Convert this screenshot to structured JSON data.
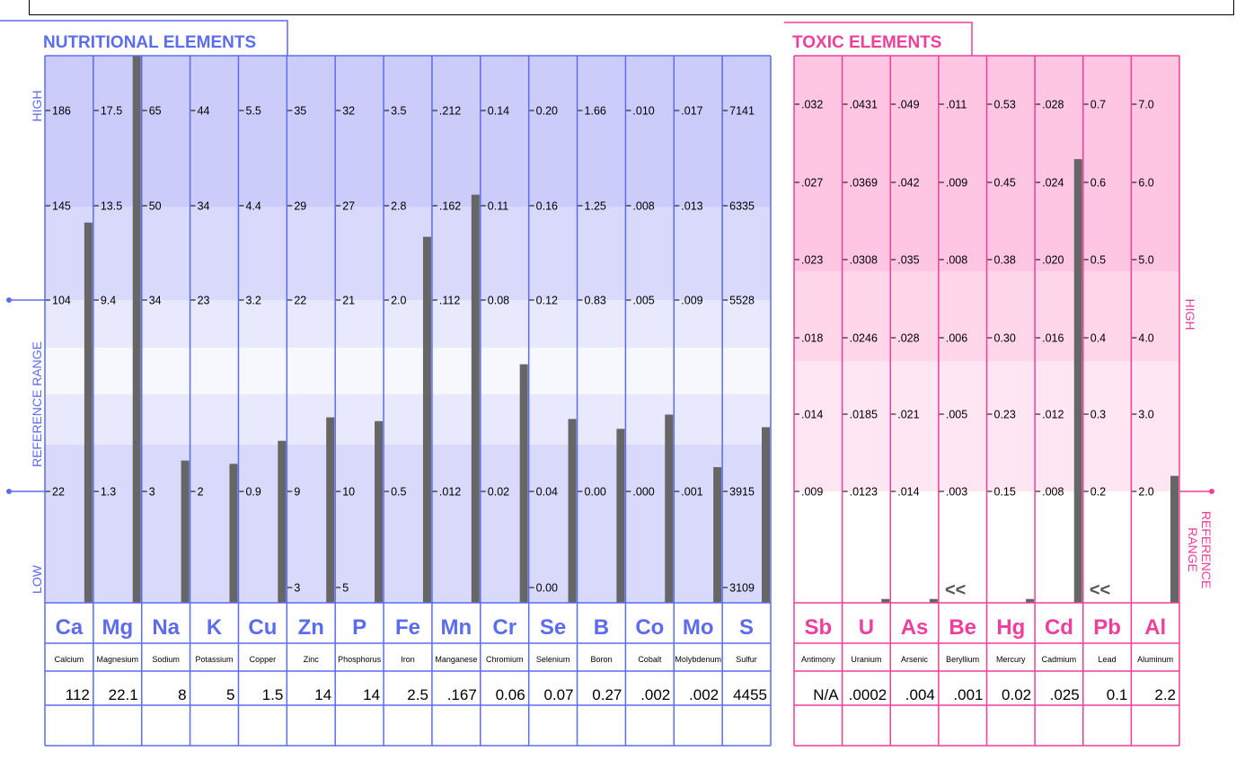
{
  "chart_data": [
    {
      "type": "bar",
      "title": "NUTRITIONAL ELEMENTS",
      "axis_labels": {
        "high": "HIGH",
        "reference_range": "REFERENCE   RANGE",
        "low": "LOW"
      },
      "accent": "#5b6cf0",
      "bar_color": "#666666",
      "elements": [
        {
          "symbol": "Ca",
          "name": "Calcium",
          "ticks": [
            "186",
            "145",
            "104",
            "22"
          ],
          "extra_ticks": [],
          "result": "112",
          "bar_level": 0.695
        },
        {
          "symbol": "Mg",
          "name": "Magnesium",
          "ticks": [
            "17.5",
            "13.5",
            "9.4",
            "1.3"
          ],
          "extra_ticks": [],
          "result": "22.1",
          "bar_level": 1.0
        },
        {
          "symbol": "Na",
          "name": "Sodium",
          "ticks": [
            "65",
            "50",
            "34",
            "3"
          ],
          "extra_ticks": [],
          "result": "8",
          "bar_level": 0.26
        },
        {
          "symbol": "K",
          "name": "Potassium",
          "ticks": [
            "44",
            "34",
            "23",
            "2"
          ],
          "extra_ticks": [],
          "result": "5",
          "bar_level": 0.254
        },
        {
          "symbol": "Cu",
          "name": "Copper",
          "ticks": [
            "5.5",
            "4.4",
            "3.2",
            "0.9"
          ],
          "extra_ticks": [],
          "result": "1.5",
          "bar_level": 0.296
        },
        {
          "symbol": "Zn",
          "name": "Zinc",
          "ticks": [
            "35",
            "29",
            "22",
            "9"
          ],
          "extra_ticks": [
            "3"
          ],
          "result": "14",
          "bar_level": 0.339
        },
        {
          "symbol": "P",
          "name": "Phosphorus",
          "ticks": [
            "32",
            "27",
            "21",
            "10"
          ],
          "extra_ticks": [
            "5"
          ],
          "result": "14",
          "bar_level": 0.332
        },
        {
          "symbol": "Fe",
          "name": "Iron",
          "ticks": [
            "3.5",
            "2.8",
            "2.0",
            "0.5"
          ],
          "extra_ticks": [],
          "result": "2.5",
          "bar_level": 0.669
        },
        {
          "symbol": "Mn",
          "name": "Manganese",
          "ticks": [
            ".212",
            ".162",
            ".112",
            ".012"
          ],
          "extra_ticks": [],
          "result": ".167",
          "bar_level": 0.746
        },
        {
          "symbol": "Cr",
          "name": "Chromium",
          "ticks": [
            "0.14",
            "0.11",
            "0.08",
            "0.02"
          ],
          "extra_ticks": [],
          "result": "0.06",
          "bar_level": 0.436
        },
        {
          "symbol": "Se",
          "name": "Selenium",
          "ticks": [
            "0.20",
            "0.16",
            "0.12",
            "0.04"
          ],
          "extra_ticks": [
            "0.00"
          ],
          "result": "0.07",
          "bar_level": 0.336
        },
        {
          "symbol": "B",
          "name": "Boron",
          "ticks": [
            "1.66",
            "1.25",
            "0.83",
            "0.00"
          ],
          "extra_ticks": [],
          "result": "0.27",
          "bar_level": 0.318
        },
        {
          "symbol": "Co",
          "name": "Cobalt",
          "ticks": [
            ".010",
            ".008",
            ".005",
            ".000"
          ],
          "extra_ticks": [],
          "result": ".002",
          "bar_level": 0.344
        },
        {
          "symbol": "Mo",
          "name": "Molybdenum",
          "ticks": [
            ".017",
            ".013",
            ".009",
            ".001"
          ],
          "extra_ticks": [],
          "result": ".002",
          "bar_level": 0.248
        },
        {
          "symbol": "S",
          "name": "Sulfur",
          "ticks": [
            "7141",
            "6335",
            "5528",
            "3915"
          ],
          "extra_ticks": [
            "3109"
          ],
          "result": "4455",
          "bar_level": 0.321
        }
      ]
    },
    {
      "type": "bar",
      "title": "TOXIC ELEMENTS",
      "axis_labels": {
        "high": "HIGH",
        "reference_range": "REFERENCE\nRANGE"
      },
      "accent": "#ef3f9a",
      "bar_color": "#666666",
      "elements": [
        {
          "symbol": "Sb",
          "name": "Antimony",
          "ticks": [
            ".032",
            ".027",
            ".023",
            ".018",
            ".014",
            ".009"
          ],
          "below_marker": "",
          "result": "N/A",
          "bar_level": 0.0
        },
        {
          "symbol": "U",
          "name": "Uranium",
          "ticks": [
            ".0431",
            ".0369",
            ".0308",
            ".0246",
            ".0185",
            ".0123"
          ],
          "below_marker": "",
          "result": ".0002",
          "bar_level": 0.007
        },
        {
          "symbol": "As",
          "name": "Arsenic",
          "ticks": [
            ".049",
            ".042",
            ".035",
            ".028",
            ".021",
            ".014"
          ],
          "below_marker": "",
          "result": ".004",
          "bar_level": 0.007
        },
        {
          "symbol": "Be",
          "name": "Beryllium",
          "ticks": [
            ".011",
            ".009",
            ".008",
            ".006",
            ".005",
            ".003"
          ],
          "below_marker": "<<",
          "result": ".001",
          "bar_level": 0.0
        },
        {
          "symbol": "Hg",
          "name": "Mercury",
          "ticks": [
            "0.53",
            "0.45",
            "0.38",
            "0.30",
            "0.23",
            "0.15"
          ],
          "below_marker": "",
          "result": "0.02",
          "bar_level": 0.007
        },
        {
          "symbol": "Cd",
          "name": "Cadmium",
          "ticks": [
            ".028",
            ".024",
            ".020",
            ".016",
            ".012",
            ".008"
          ],
          "below_marker": "",
          "result": ".025",
          "bar_level": 0.811
        },
        {
          "symbol": "Pb",
          "name": "Lead",
          "ticks": [
            "0.7",
            "0.6",
            "0.5",
            "0.4",
            "0.3",
            "0.2"
          ],
          "below_marker": "<<",
          "result": "0.1",
          "bar_level": 0.0
        },
        {
          "symbol": "Al",
          "name": "Aluminum",
          "ticks": [
            "7.0",
            "6.0",
            "5.0",
            "4.0",
            "3.0",
            "2.0"
          ],
          "below_marker": "",
          "result": "2.2",
          "bar_level": 0.232
        }
      ]
    }
  ]
}
